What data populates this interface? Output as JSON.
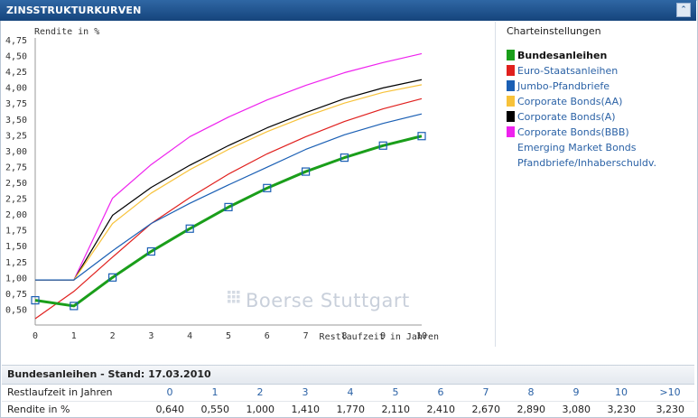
{
  "widget": {
    "title": "ZINSSTRUKTURKURVEN",
    "collapse_glyph": "⌃"
  },
  "watermark": "Boerse Stuttgart",
  "settings": {
    "title": "Charteinstellungen",
    "items": [
      {
        "label": "Bundesanleihen",
        "color": "#1a9e1a",
        "active": true
      },
      {
        "label": "Euro-Staatsanleihen",
        "color": "#e0201e",
        "active": false
      },
      {
        "label": "Jumbo-Pfandbriefe",
        "color": "#1a5fb4",
        "active": false
      },
      {
        "label": "Corporate Bonds(AA)",
        "color": "#f7c23a",
        "active": false
      },
      {
        "label": "Corporate Bonds(A)",
        "color": "#000000",
        "active": false
      },
      {
        "label": "Corporate Bonds(BBB)",
        "color": "#ee22ee",
        "active": false
      },
      {
        "label": "Emerging Market Bonds",
        "color": null,
        "active": false
      },
      {
        "label": "Pfandbriefe/Inhaberschuldv.",
        "color": null,
        "active": false
      }
    ]
  },
  "table": {
    "heading": "Bundesanleihen - Stand: 17.03.2010",
    "row1_label": "Restlaufzeit in Jahren",
    "row2_label": "Rendite in %",
    "maturities": [
      "0",
      "1",
      "2",
      "3",
      "4",
      "5",
      "6",
      "7",
      "8",
      "9",
      "10",
      ">10"
    ],
    "yields": [
      "0,640",
      "0,550",
      "1,000",
      "1,410",
      "1,770",
      "2,110",
      "2,410",
      "2,670",
      "2,890",
      "3,080",
      "3,230",
      "3,230"
    ]
  },
  "chart_data": {
    "type": "line",
    "ylabel": "Rendite in %",
    "xlabel": "Restlaufzeit in Jahren",
    "xlim": [
      0,
      10
    ],
    "ylim": [
      0.25,
      4.75
    ],
    "x": [
      0,
      1,
      2,
      3,
      4,
      5,
      6,
      7,
      8,
      9,
      10
    ],
    "xticks": [
      "0",
      "1",
      "2",
      "3",
      "4",
      "5",
      "6",
      "7",
      "8",
      "9",
      "10"
    ],
    "yticks": [
      "0,50",
      "0,75",
      "1,00",
      "1,25",
      "1,50",
      "1,75",
      "2,00",
      "2,25",
      "2,50",
      "2,75",
      "3,00",
      "3,25",
      "3,50",
      "3,75",
      "4,00",
      "4,25",
      "4,50",
      "4,75"
    ],
    "grid": false,
    "series": [
      {
        "name": "Corporate Bonds(BBB)",
        "color": "#ee22ee",
        "values": [
          0.96,
          0.96,
          2.25,
          2.78,
          3.22,
          3.53,
          3.8,
          4.03,
          4.23,
          4.39,
          4.53
        ]
      },
      {
        "name": "Corporate Bonds(A)",
        "color": "#000000",
        "values": [
          0.96,
          0.96,
          1.98,
          2.42,
          2.77,
          3.08,
          3.36,
          3.6,
          3.82,
          3.99,
          4.12
        ]
      },
      {
        "name": "Corporate Bonds(AA)",
        "color": "#f7c23a",
        "values": [
          0.96,
          0.96,
          1.85,
          2.33,
          2.7,
          3.02,
          3.3,
          3.54,
          3.75,
          3.92,
          4.04
        ]
      },
      {
        "name": "Euro-Staatsanleihen",
        "color": "#e0201e",
        "values": [
          0.35,
          0.78,
          1.32,
          1.85,
          2.26,
          2.63,
          2.95,
          3.22,
          3.46,
          3.66,
          3.82
        ]
      },
      {
        "name": "Jumbo-Pfandbriefe",
        "color": "#1a5fb4",
        "values": [
          0.96,
          0.96,
          1.42,
          1.85,
          2.17,
          2.46,
          2.74,
          3.02,
          3.25,
          3.43,
          3.58
        ]
      },
      {
        "name": "Bundesanleihen",
        "color": "#1a9e1a",
        "values": [
          0.64,
          0.55,
          1.0,
          1.41,
          1.77,
          2.11,
          2.41,
          2.67,
          2.89,
          3.08,
          3.23
        ],
        "markers": true
      }
    ]
  }
}
